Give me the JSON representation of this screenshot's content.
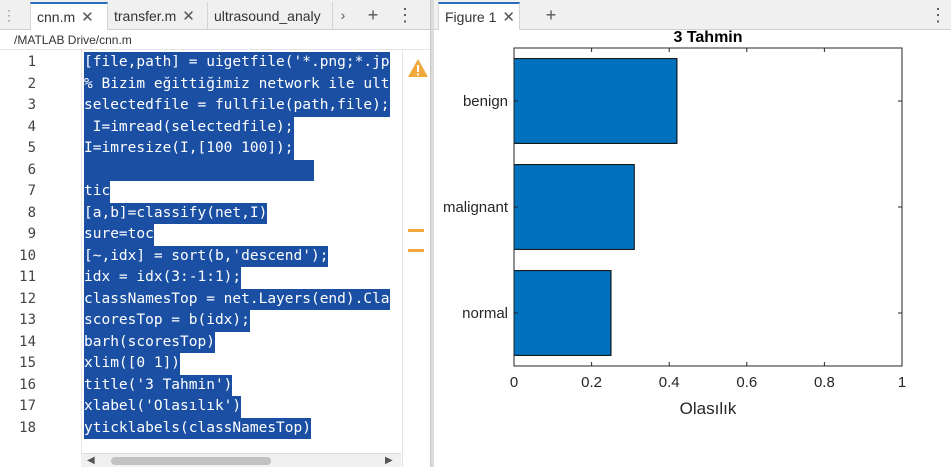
{
  "editor": {
    "tabs": [
      {
        "label": "cnn.m",
        "close": "✕",
        "active": true
      },
      {
        "label": "transfer.m",
        "close": "✕",
        "active": false
      },
      {
        "label": "ultrasound_analy",
        "close": "",
        "active": false
      }
    ],
    "breadcrumb": "/MATLAB Drive/cnn.m",
    "lines": [
      {
        "num": "1",
        "code": "[file,path] = uigetfile('*.png;*.jp"
      },
      {
        "num": "2",
        "code": "% Bizim eğittiğimiz network ile ult"
      },
      {
        "num": "3",
        "code": "selectedfile = fullfile(path,file);"
      },
      {
        "num": "4",
        "code": " I=imread(selectedfile);"
      },
      {
        "num": "5",
        "code": "I=imresize(I,[100 100]);"
      },
      {
        "num": "6",
        "code": ""
      },
      {
        "num": "7",
        "code": "tic"
      },
      {
        "num": "8",
        "code": "[a,b]=classify(net,I)"
      },
      {
        "num": "9",
        "code": "sure=toc"
      },
      {
        "num": "10",
        "code": "[~,idx] = sort(b,'descend');"
      },
      {
        "num": "11",
        "code": "idx = idx(3:-1:1);"
      },
      {
        "num": "12",
        "code": "classNamesTop = net.Layers(end).Cla"
      },
      {
        "num": "13",
        "code": "scoresTop = b(idx);"
      },
      {
        "num": "14",
        "code": "barh(scoresTop)"
      },
      {
        "num": "15",
        "code": "xlim([0 1])"
      },
      {
        "num": "16",
        "code": "title('3 Tahmin')"
      },
      {
        "num": "17",
        "code": "xlabel('Olasılık')"
      },
      {
        "num": "18",
        "code": "yticklabels(classNamesTop)"
      }
    ],
    "selection_color": "#1a4fa3",
    "warning_color": "#f0a93a"
  },
  "figure": {
    "tab_label": "Figure 1",
    "tab_close": "✕",
    "add_label": "+",
    "menu_label": "⋮"
  },
  "chart_data": {
    "type": "bar",
    "orientation": "horizontal",
    "title": "3 Tahmin",
    "xlabel": "Olasılık",
    "ylabel": "",
    "categories": [
      "normal",
      "malignant",
      "benign"
    ],
    "values": [
      0.25,
      0.31,
      0.42
    ],
    "xlim": [
      0,
      1
    ],
    "xticks": [
      "0",
      "0.2",
      "0.4",
      "0.6",
      "0.8",
      "1"
    ],
    "bar_color": "#0072bd",
    "grid": false,
    "legend": "none"
  }
}
